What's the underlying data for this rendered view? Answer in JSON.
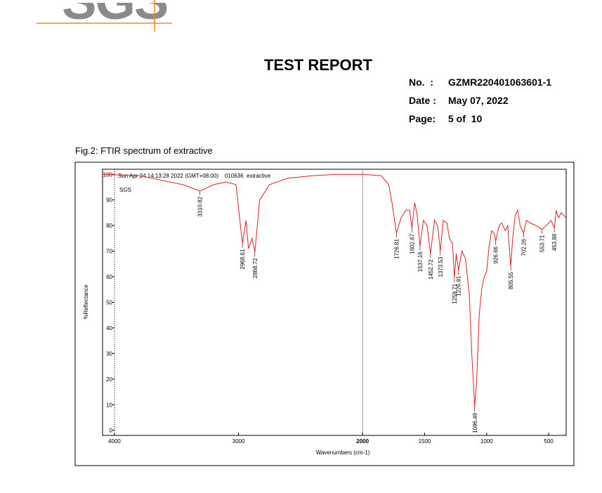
{
  "header": {
    "logo": "SGS",
    "title": "TEST REPORT",
    "fields": [
      {
        "label": "No.  :",
        "value": "GZMR220401063601-1"
      },
      {
        "label": "Date :",
        "value": "May 07, 2022"
      },
      {
        "label": "Page:",
        "value": "5 of  10"
      }
    ]
  },
  "caption": "Fig.2: FTIR spectrum of extractive",
  "chart_data": {
    "type": "line",
    "header_note": "Sun Apr 24 14:13:28 2022 (GMT+08:00)    010636  extractive",
    "inner_label": "SGS",
    "xlabel": "Wavenumbers (cm-1)",
    "ylabel": "%Reflectance",
    "xlim": [
      4096,
      359
    ],
    "ylim": [
      -2,
      102
    ],
    "xticks": [
      4000,
      3000,
      2000,
      1500,
      1000,
      500
    ],
    "yticks": [
      0,
      10,
      20,
      30,
      40,
      50,
      60,
      70,
      80,
      90,
      100
    ],
    "divider_x": 2000,
    "series": [
      {
        "name": "extractive",
        "color": "#e02020",
        "x": [
          4096,
          3800,
          3600,
          3450,
          3310.82,
          3200,
          3100,
          3020,
          2968.61,
          2940,
          2920,
          2890,
          2868.72,
          2830,
          2750,
          2600,
          2400,
          2200,
          2000,
          1850,
          1790,
          1760,
          1726.81,
          1690,
          1650,
          1620,
          1602.67,
          1580,
          1560,
          1537.16,
          1510,
          1480,
          1452.72,
          1420,
          1395,
          1373.53,
          1350,
          1320,
          1300,
          1275,
          1259.71,
          1245,
          1226.91,
          1200,
          1170,
          1140,
          1120,
          1096.49,
          1080,
          1060,
          1040,
          1020,
          1000,
          980,
          960,
          940,
          926.66,
          900,
          880,
          850,
          830,
          805.55,
          790,
          770,
          750,
          730,
          702.26,
          680,
          650,
          600,
          553.71,
          520,
          480,
          453.88,
          440,
          420,
          400,
          359
        ],
        "values": [
          100,
          99.5,
          97.5,
          96,
          93.5,
          96,
          97,
          96,
          73,
          82,
          71,
          75,
          69.5,
          90,
          96,
          98.5,
          99.5,
          100,
          100,
          99.5,
          96,
          88,
          77,
          83,
          86,
          86,
          79,
          89,
          84,
          72,
          82,
          80,
          69,
          82,
          80,
          70,
          82,
          81,
          75,
          73,
          59.5,
          69,
          62.5,
          70,
          67,
          53,
          30,
          9,
          20,
          45,
          55,
          60,
          62,
          72,
          78,
          77,
          74,
          80,
          81,
          78,
          80,
          64,
          75,
          84,
          86,
          80,
          77,
          82,
          81,
          80,
          78.5,
          80,
          82,
          79,
          86,
          83,
          85,
          83
        ]
      }
    ],
    "peaks": [
      3310.82,
      2968.61,
      2868.72,
      1726.81,
      1602.67,
      1537.16,
      1452.72,
      1373.53,
      1259.71,
      1226.91,
      1096.49,
      926.66,
      805.55,
      702.26,
      553.71,
      453.88
    ]
  }
}
